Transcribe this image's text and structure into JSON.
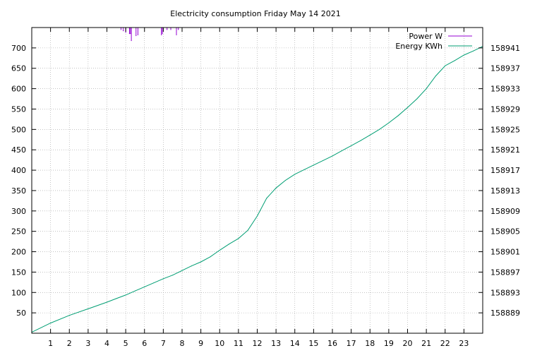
{
  "chart_data": {
    "type": "line",
    "title": "Electricity consumption Friday May 14 2021",
    "x_ticks": [
      "1",
      "2",
      "3",
      "4",
      "5",
      "6",
      "7",
      "8",
      "9",
      "10",
      "11",
      "12",
      "13",
      "14",
      "15",
      "16",
      "17",
      "18",
      "19",
      "20",
      "21",
      "22",
      "23"
    ],
    "xlim": [
      0,
      24
    ],
    "y_left": {
      "range": [
        0,
        750
      ],
      "ticks": [
        "50",
        "100",
        "150",
        "200",
        "250",
        "300",
        "350",
        "400",
        "450",
        "500",
        "550",
        "600",
        "650",
        "700"
      ]
    },
    "y_right": {
      "range": [
        158885,
        158945
      ],
      "ticks": [
        "158889",
        "158893",
        "158897",
        "158901",
        "158905",
        "158909",
        "158913",
        "158917",
        "158921",
        "158925",
        "158929",
        "158933",
        "158937",
        "158941"
      ]
    },
    "grid": true,
    "legend_position": "top-right",
    "series": [
      {
        "name": "Power W",
        "axis": "left",
        "color": "#9400d3",
        "style": "impulse-down-from-top",
        "x": [
          4.75,
          4.87,
          5.0,
          5.2,
          5.25,
          5.3,
          5.55,
          5.65,
          6.9,
          6.95,
          7.2,
          7.4,
          7.7,
          7.8
        ],
        "y": [
          745,
          742,
          738,
          735,
          735,
          718,
          730,
          732,
          732,
          735,
          745,
          745,
          732,
          745
        ]
      },
      {
        "name": "Energy KWh",
        "axis": "right",
        "color": "#009e73",
        "style": "line",
        "x": [
          0,
          1,
          2,
          3,
          4,
          4.5,
          5,
          5.5,
          6,
          6.5,
          7,
          7.5,
          8,
          8.5,
          9,
          9.5,
          10,
          10.5,
          11,
          11.5,
          12,
          12.5,
          13,
          13.5,
          14,
          14.5,
          15,
          15.5,
          16,
          16.5,
          17,
          17.5,
          18,
          18.5,
          19,
          19.5,
          20,
          20.5,
          21,
          21.5,
          22,
          22.5,
          23,
          23.5,
          24
        ],
        "y": [
          158885.2,
          158887.0,
          158888.5,
          158889.8,
          158891.1,
          158891.8,
          158892.5,
          158893.3,
          158894.1,
          158894.9,
          158895.7,
          158896.4,
          158897.3,
          158898.2,
          158899.0,
          158900.0,
          158901.3,
          158902.5,
          158903.6,
          158905.2,
          158908.0,
          158911.5,
          158913.5,
          158915.0,
          158916.2,
          158917.1,
          158918.0,
          158918.9,
          158919.8,
          158920.8,
          158921.8,
          158922.8,
          158923.9,
          158925.0,
          158926.3,
          158927.7,
          158929.3,
          158931.0,
          158933.0,
          158935.5,
          158937.5,
          158938.5,
          158939.6,
          158940.4,
          158941.3
        ]
      }
    ]
  }
}
